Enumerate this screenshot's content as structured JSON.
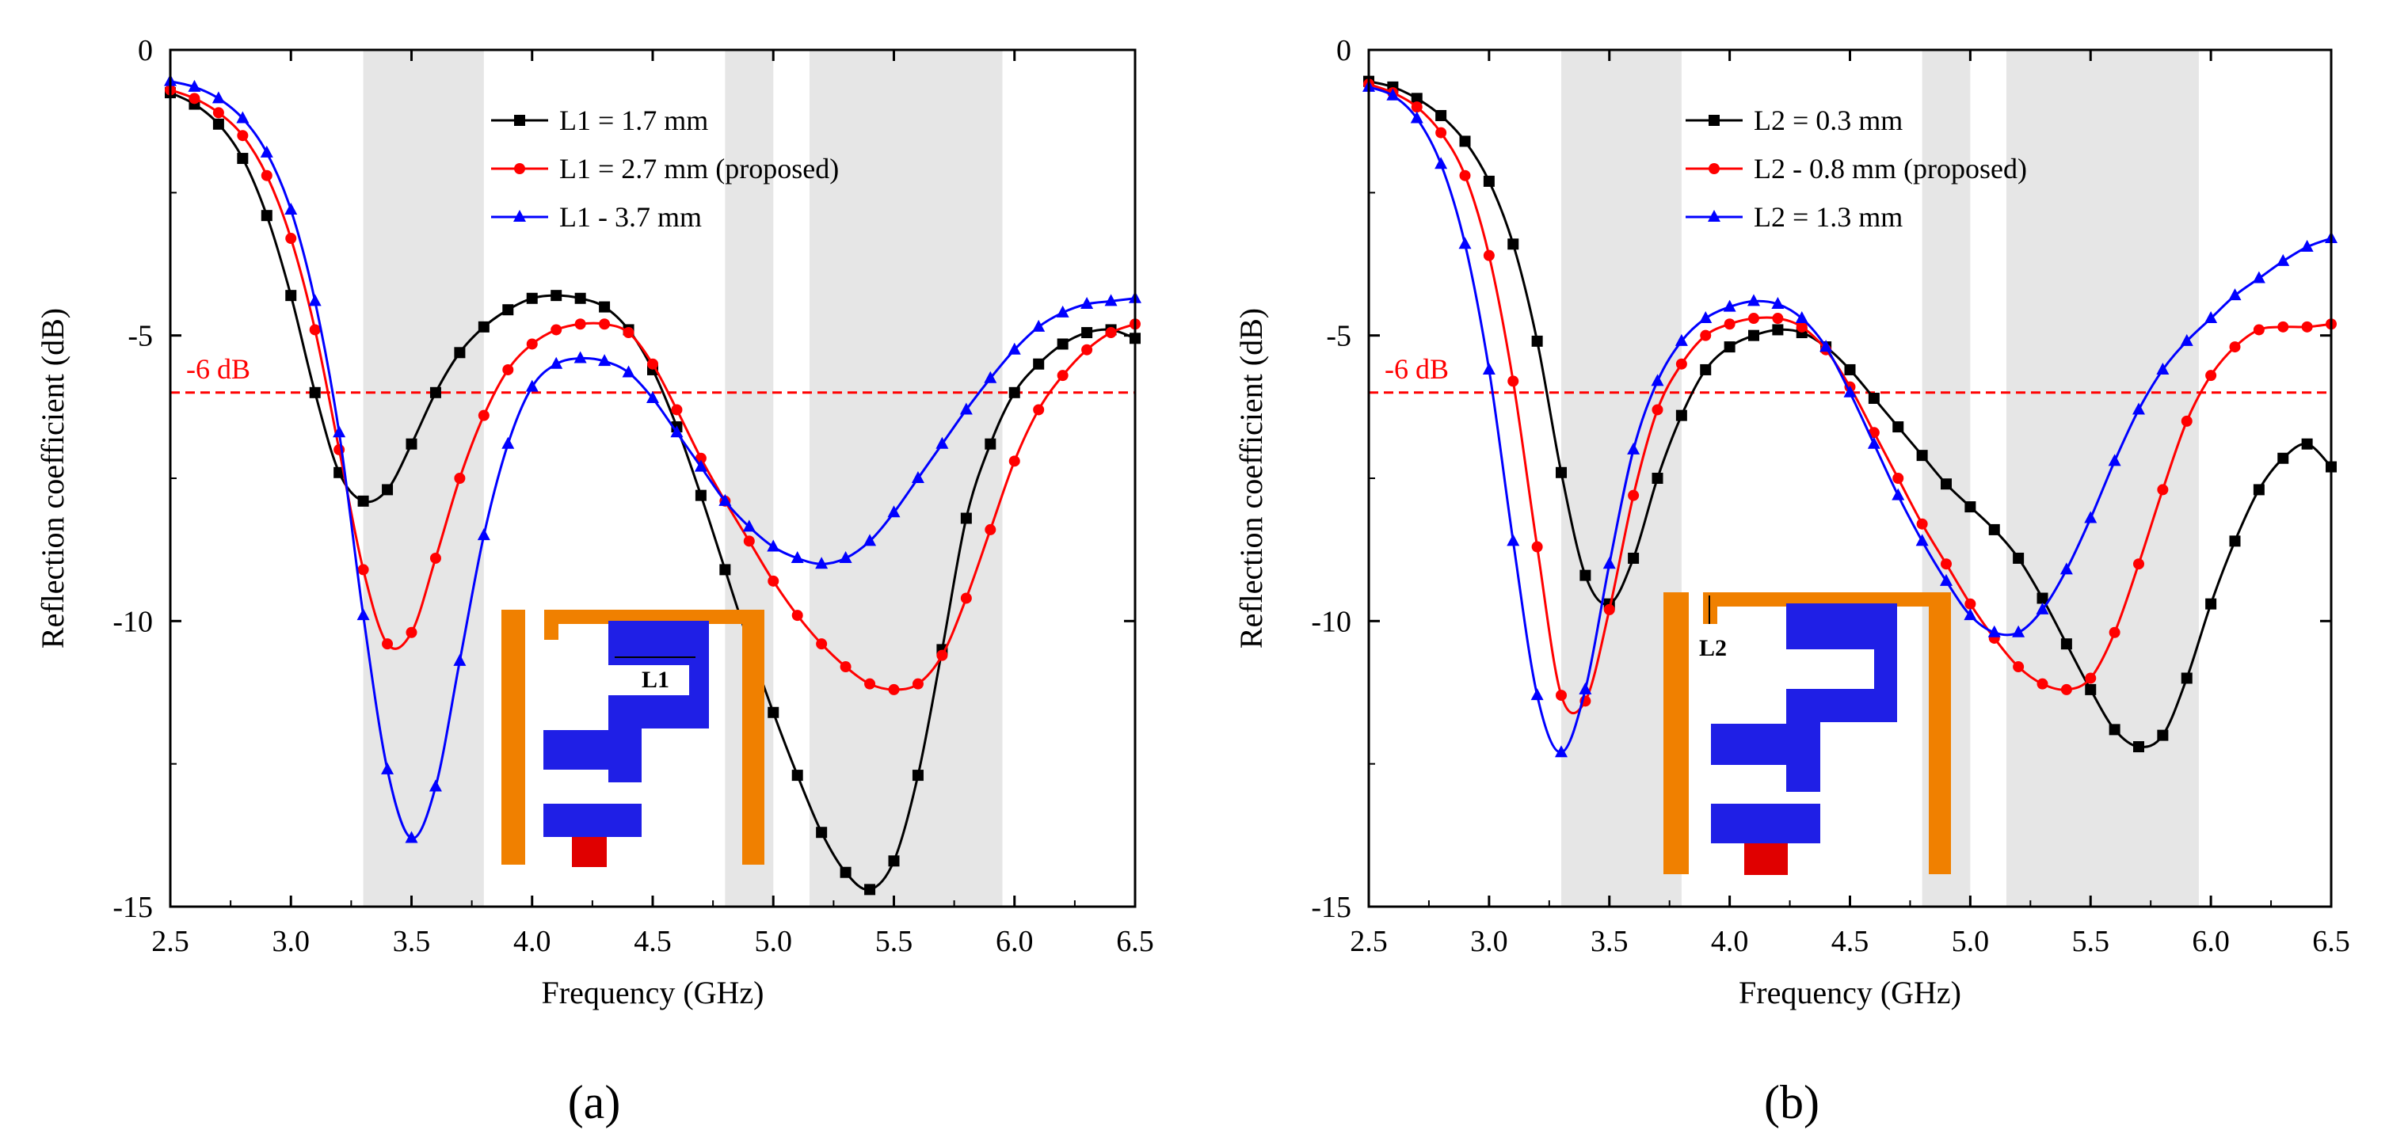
{
  "figure": {
    "panel_labels": [
      "(a)",
      "(b)"
    ]
  },
  "chart_data": [
    {
      "type": "line",
      "panel": "a",
      "title": "",
      "xlabel": "Frequency (GHz)",
      "ylabel": "Reflection coefficient (dB)",
      "xlim": [
        2.5,
        6.5
      ],
      "ylim": [
        -15,
        0
      ],
      "xticks": [
        "2.5",
        "3.0",
        "3.5",
        "4.0",
        "4.5",
        "5.0",
        "5.5",
        "6.0",
        "6.5"
      ],
      "yticks": [
        "0",
        "-5",
        "-10",
        "-15"
      ],
      "grid": false,
      "legend_position": "top-center",
      "shaded_bands": [
        [
          3.3,
          3.8
        ],
        [
          4.8,
          5.0
        ],
        [
          5.15,
          5.95
        ]
      ],
      "reference_line": {
        "y": -6,
        "label": "-6 dB",
        "color": "#ff0000"
      },
      "inset": {
        "description": "antenna structure",
        "label": "L1"
      },
      "x": [
        2.5,
        2.6,
        2.7,
        2.8,
        2.9,
        3.0,
        3.1,
        3.2,
        3.3,
        3.4,
        3.5,
        3.6,
        3.7,
        3.8,
        3.9,
        4.0,
        4.1,
        4.2,
        4.3,
        4.4,
        4.5,
        4.6,
        4.7,
        4.8,
        4.9,
        5.0,
        5.1,
        5.2,
        5.3,
        5.4,
        5.5,
        5.6,
        5.7,
        5.8,
        5.9,
        6.0,
        6.1,
        6.2,
        6.3,
        6.4,
        6.5
      ],
      "series": [
        {
          "name": "L1 = 1.7 mm",
          "color": "#000000",
          "marker": "square",
          "values": [
            -0.75,
            -0.95,
            -1.3,
            -1.9,
            -2.9,
            -4.3,
            -6.0,
            -7.4,
            -7.9,
            -7.7,
            -6.9,
            -6.0,
            -5.3,
            -4.85,
            -4.55,
            -4.35,
            -4.3,
            -4.35,
            -4.5,
            -4.9,
            -5.6,
            -6.6,
            -7.8,
            -9.1,
            -10.4,
            -11.6,
            -12.7,
            -13.7,
            -14.4,
            -14.7,
            -14.2,
            -12.7,
            -10.5,
            -8.2,
            -6.9,
            -6.0,
            -5.5,
            -5.15,
            -4.95,
            -4.9,
            -5.05
          ]
        },
        {
          "name": "L1 = 2.7 mm (proposed)",
          "color": "#ff0000",
          "marker": "circle",
          "values": [
            -0.7,
            -0.85,
            -1.1,
            -1.5,
            -2.2,
            -3.3,
            -4.9,
            -7.0,
            -9.1,
            -10.4,
            -10.2,
            -8.9,
            -7.5,
            -6.4,
            -5.6,
            -5.15,
            -4.9,
            -4.8,
            -4.8,
            -4.95,
            -5.5,
            -6.3,
            -7.15,
            -7.9,
            -8.6,
            -9.3,
            -9.9,
            -10.4,
            -10.8,
            -11.1,
            -11.2,
            -11.1,
            -10.6,
            -9.6,
            -8.4,
            -7.2,
            -6.3,
            -5.7,
            -5.25,
            -4.95,
            -4.8
          ]
        },
        {
          "name": "L1 - 3.7 mm",
          "color": "#0000ff",
          "marker": "triangle",
          "values": [
            -0.55,
            -0.65,
            -0.85,
            -1.2,
            -1.8,
            -2.8,
            -4.4,
            -6.7,
            -9.9,
            -12.6,
            -13.8,
            -12.9,
            -10.7,
            -8.5,
            -6.9,
            -5.9,
            -5.5,
            -5.4,
            -5.45,
            -5.65,
            -6.1,
            -6.7,
            -7.3,
            -7.9,
            -8.35,
            -8.7,
            -8.9,
            -9.0,
            -8.9,
            -8.6,
            -8.1,
            -7.5,
            -6.9,
            -6.3,
            -5.75,
            -5.25,
            -4.85,
            -4.6,
            -4.45,
            -4.4,
            -4.35
          ]
        }
      ]
    },
    {
      "type": "line",
      "panel": "b",
      "title": "",
      "xlabel": "Frequency (GHz)",
      "ylabel": "Reflection coefficient (dB)",
      "xlim": [
        2.5,
        6.5
      ],
      "ylim": [
        -15,
        0
      ],
      "xticks": [
        "2.5",
        "3.0",
        "3.5",
        "4.0",
        "4.5",
        "5.0",
        "5.5",
        "6.0",
        "6.5"
      ],
      "yticks": [
        "0",
        "-5",
        "-10",
        "-15"
      ],
      "grid": false,
      "legend_position": "top-center",
      "shaded_bands": [
        [
          3.3,
          3.8
        ],
        [
          4.8,
          5.0
        ],
        [
          5.15,
          5.95
        ]
      ],
      "reference_line": {
        "y": -6,
        "label": "-6 dB",
        "color": "#ff0000"
      },
      "inset": {
        "description": "antenna structure",
        "label": "L2"
      },
      "x": [
        2.5,
        2.6,
        2.7,
        2.8,
        2.9,
        3.0,
        3.1,
        3.2,
        3.3,
        3.4,
        3.5,
        3.6,
        3.7,
        3.8,
        3.9,
        4.0,
        4.1,
        4.2,
        4.3,
        4.4,
        4.5,
        4.6,
        4.7,
        4.8,
        4.9,
        5.0,
        5.1,
        5.2,
        5.3,
        5.4,
        5.5,
        5.6,
        5.7,
        5.8,
        5.9,
        6.0,
        6.1,
        6.2,
        6.3,
        6.4,
        6.5
      ],
      "series": [
        {
          "name": "L2 = 0.3 mm",
          "color": "#000000",
          "marker": "square",
          "values": [
            -0.55,
            -0.65,
            -0.85,
            -1.15,
            -1.6,
            -2.3,
            -3.4,
            -5.1,
            -7.4,
            -9.2,
            -9.7,
            -8.9,
            -7.5,
            -6.4,
            -5.6,
            -5.2,
            -5.0,
            -4.9,
            -4.95,
            -5.2,
            -5.6,
            -6.1,
            -6.6,
            -7.1,
            -7.6,
            -8.0,
            -8.4,
            -8.9,
            -9.6,
            -10.4,
            -11.2,
            -11.9,
            -12.2,
            -12.0,
            -11.0,
            -9.7,
            -8.6,
            -7.7,
            -7.15,
            -6.9,
            -7.3
          ]
        },
        {
          "name": "L2 - 0.8 mm (proposed)",
          "color": "#ff0000",
          "marker": "circle",
          "values": [
            -0.6,
            -0.75,
            -1.0,
            -1.45,
            -2.2,
            -3.6,
            -5.8,
            -8.7,
            -11.3,
            -11.4,
            -9.8,
            -7.8,
            -6.3,
            -5.5,
            -5.0,
            -4.8,
            -4.7,
            -4.7,
            -4.85,
            -5.25,
            -5.9,
            -6.7,
            -7.5,
            -8.3,
            -9.0,
            -9.7,
            -10.3,
            -10.8,
            -11.1,
            -11.2,
            -11.0,
            -10.2,
            -9.0,
            -7.7,
            -6.5,
            -5.7,
            -5.2,
            -4.9,
            -4.85,
            -4.85,
            -4.8
          ]
        },
        {
          "name": "L2 = 1.3 mm",
          "color": "#0000ff",
          "marker": "triangle",
          "values": [
            -0.65,
            -0.8,
            -1.2,
            -2.0,
            -3.4,
            -5.6,
            -8.6,
            -11.3,
            -12.3,
            -11.2,
            -9.0,
            -7.0,
            -5.8,
            -5.1,
            -4.7,
            -4.5,
            -4.4,
            -4.45,
            -4.7,
            -5.2,
            -6.0,
            -6.9,
            -7.8,
            -8.6,
            -9.3,
            -9.9,
            -10.2,
            -10.2,
            -9.8,
            -9.1,
            -8.2,
            -7.2,
            -6.3,
            -5.6,
            -5.1,
            -4.7,
            -4.3,
            -4.0,
            -3.7,
            -3.45,
            -3.3
          ]
        }
      ]
    }
  ]
}
